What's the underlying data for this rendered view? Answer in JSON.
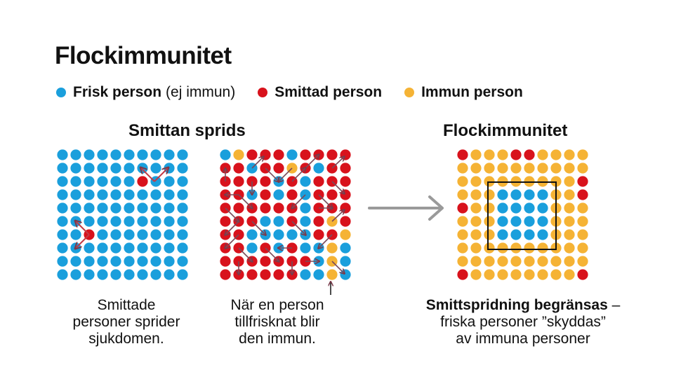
{
  "title": "Flockimmunitet",
  "legend": [
    {
      "label": "Frisk person",
      "note": "(ej immun)",
      "color": "#1a9fdc"
    },
    {
      "label": "Smittad person",
      "note": "",
      "color": "#d8121c"
    },
    {
      "label": "Immun person",
      "note": "",
      "color": "#f5b335"
    }
  ],
  "colors": {
    "frisk": "#1a9fdc",
    "smittad": "#d8121c",
    "immun": "#f5b335",
    "arrow": "#9a9a9a"
  },
  "sections": {
    "left_heading": "Smittan sprids",
    "right_heading": "Flockimmunitet"
  },
  "captions": {
    "left": [
      "Smittade",
      "personer sprider",
      "sjukdomen."
    ],
    "middle": [
      "När en person",
      "tillfrisknat blir",
      "den immun."
    ],
    "right_bold": "Smittspridning begränsas",
    "right_rest": " –",
    "right_lines": [
      "friska personer ”skyddas”",
      "av immuna personer"
    ]
  },
  "grids": {
    "left": {
      "legend_codes": "F = frisk, S = smittad, I = immun",
      "rows": [
        "FFFFFFFFFF",
        "FFFFFFFFFF",
        "FFFFFFSFFF",
        "FFFFFFFFFF",
        "FFFFFFFFFF",
        "FFFFFFFFFF",
        "FFSFFFFFFF",
        "FFFFFFFFFF",
        "FFFFFFFFFF",
        "FFFFFFFFFF"
      ]
    },
    "middle": {
      "rows": [
        "FISSSFSSSS",
        "SSFSSISFSS",
        "SSSSFSFSSS",
        "SSFSFSFSSS",
        "SSSSSSFSSS",
        "SSSFFSFSIS",
        "SSFFFFFSSI",
        "SSFSFSFFIF",
        "SSSSSSSFIF",
        "SSSSSSFFIF"
      ]
    },
    "right": {
      "rows": [
        "SIIISSIIII",
        "IIIIIIIIII",
        "IIIIIIIIIS",
        "IIIFFFFIIS",
        "SIIFFFFIII",
        "IIIFFFFIII",
        "IIIFFFFIII",
        "IIIIIIIIII",
        "IIIIIIIIII",
        "SIIIIIIIIS"
      ]
    }
  }
}
